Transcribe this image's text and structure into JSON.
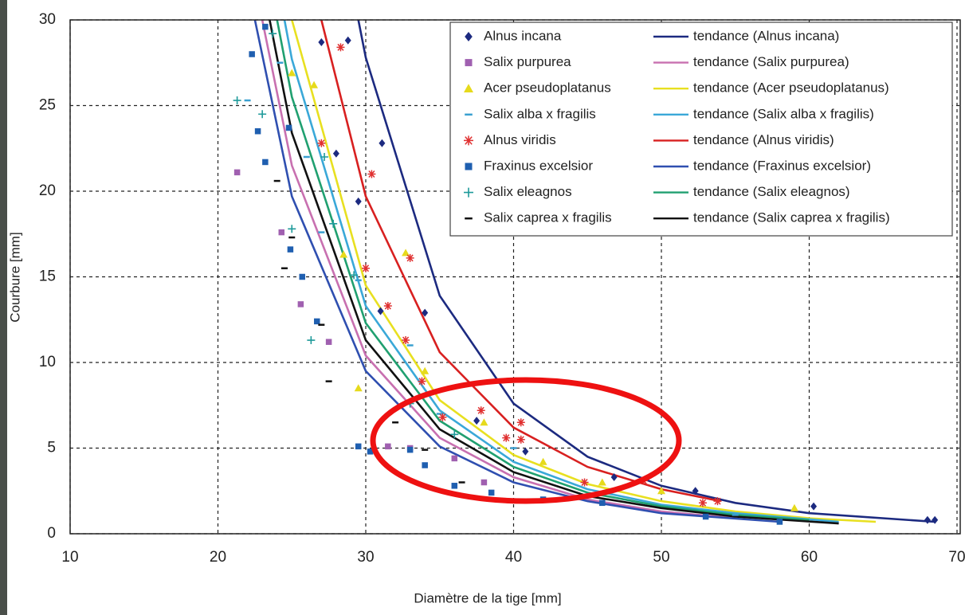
{
  "chart_data": {
    "type": "scatter",
    "x_label": "Diamètre de la tige [mm]",
    "y_label": "Courbure [mm]",
    "xlim": [
      10,
      70
    ],
    "xticks": [
      10,
      20,
      30,
      40,
      50,
      60,
      70
    ],
    "ylim": [
      0,
      30
    ],
    "yticks": [
      0,
      5,
      10,
      15,
      20,
      25,
      30
    ],
    "grid": true,
    "legend": "upper right",
    "series": [
      {
        "name": "Alnus incana",
        "color": "#1c2a80",
        "marker": "diamond",
        "x": [
          28.8,
          27,
          31.1,
          28,
          29.5,
          34,
          31,
          37.5,
          40.8,
          46.8,
          52.3,
          60.3,
          68,
          68.5
        ],
        "values": [
          28.8,
          28.7,
          22.8,
          22.2,
          19.4,
          12.9,
          13,
          6.6,
          4.8,
          3.3,
          2.5,
          1.6,
          0.8,
          0.8
        ]
      },
      {
        "name": "Salix purpurea",
        "color": "#a060b0",
        "marker": "square",
        "x": [
          21.3,
          24.3,
          25.6,
          27.5,
          31.5,
          33,
          36,
          38
        ],
        "values": [
          21.1,
          17.6,
          13.4,
          11.2,
          5.1,
          5.0,
          4.4,
          3.0
        ]
      },
      {
        "name": "Acer pseudoplatanus",
        "color": "#e6da1c",
        "marker": "triangle",
        "x": [
          25,
          26.5,
          28.5,
          32.7,
          29.5,
          34,
          38,
          42,
          46,
          50,
          59
        ],
        "values": [
          26.9,
          26.2,
          16.3,
          16.4,
          8.5,
          9.5,
          6.5,
          4.2,
          3.0,
          2.5,
          1.5
        ]
      },
      {
        "name": "Salix alba x fragilis",
        "color": "#3aa0d0",
        "marker": "dash",
        "x": [
          22,
          24.2,
          26,
          27,
          29.5,
          33,
          35,
          40,
          55
        ],
        "values": [
          25.3,
          27.5,
          22,
          17.6,
          14.8,
          11,
          7,
          5,
          1.1
        ]
      },
      {
        "name": "Alnus viridis",
        "color": "#e03030",
        "marker": "star",
        "x": [
          28.3,
          27,
          30.4,
          30,
          31.5,
          33,
          32.7,
          33.8,
          35.2,
          37.8,
          39.5,
          40.5,
          40.5,
          44.8,
          48.8,
          52.8,
          53.8
        ],
        "values": [
          28.4,
          22.8,
          21,
          15.5,
          13.3,
          16.1,
          11.3,
          8.9,
          6.8,
          7.2,
          5.6,
          6.5,
          5.5,
          3.0,
          3.1,
          1.8,
          1.9
        ]
      },
      {
        "name": "Fraxinus excelsior",
        "color": "#1f5fb0",
        "marker": "square",
        "x": [
          23.2,
          22.3,
          22.7,
          23.2,
          24.8,
          24.9,
          25.7,
          26.7,
          29.5,
          30.3,
          33,
          34,
          36,
          38.5,
          42,
          46,
          53,
          58
        ],
        "values": [
          29.6,
          28,
          23.5,
          21.7,
          23.7,
          16.6,
          15,
          12.4,
          5.1,
          4.8,
          4.9,
          4.0,
          2.8,
          2.4,
          2,
          1.8,
          1.0,
          0.7
        ]
      },
      {
        "name": "Salix eleagnos",
        "color": "#1e9a9a",
        "marker": "plus",
        "x": [
          21.3,
          23,
          23.7,
          25,
          26.3,
          27.2,
          27.8,
          29.2,
          33,
          36
        ],
        "values": [
          25.3,
          24.5,
          29.2,
          17.8,
          11.3,
          22,
          18.1,
          15.1,
          7.6,
          5.8
        ]
      },
      {
        "name": "Salix caprea x fragilis",
        "color": "#111111",
        "marker": "dash",
        "x": [
          24,
          24.5,
          25,
          27,
          27.5,
          32,
          34,
          36.5
        ],
        "values": [
          20.6,
          15.5,
          17.3,
          12.2,
          8.9,
          6.5,
          4.9,
          3.0
        ]
      }
    ],
    "trends": [
      {
        "name": "tendance (Alnus incana)",
        "color": "#1c2a80",
        "x": [
          29.5,
          30,
          35,
          40,
          45,
          50,
          55,
          60,
          68.5
        ],
        "values": [
          30,
          27.8,
          13.9,
          7.6,
          4.5,
          2.8,
          1.8,
          1.2,
          0.7
        ]
      },
      {
        "name": "tendance (Salix purpurea)",
        "color": "#c870b0",
        "x": [
          23,
          25,
          30,
          35,
          40,
          45,
          50,
          55
        ],
        "values": [
          30,
          21.5,
          10.4,
          5.6,
          3.3,
          2.0,
          1.3,
          0.9
        ]
      },
      {
        "name": "tendance (Acer pseudoplatanus)",
        "color": "#e8e020",
        "x": [
          25,
          30,
          35,
          40,
          45,
          50,
          55,
          60,
          64.5
        ],
        "values": [
          30,
          14.5,
          7.8,
          4.6,
          2.9,
          1.9,
          1.3,
          0.9,
          0.7
        ]
      },
      {
        "name": "tendance (Salix alba x fragilis)",
        "color": "#3aa8d8",
        "x": [
          24.5,
          25,
          30,
          35,
          40,
          45,
          50,
          55,
          62
        ],
        "values": [
          30,
          27.7,
          13.3,
          7.2,
          4.2,
          2.6,
          1.7,
          1.2,
          0.7
        ]
      },
      {
        "name": "tendance (Alnus viridis)",
        "color": "#d82020",
        "x": [
          27,
          30,
          35,
          40,
          45,
          50,
          54
        ],
        "values": [
          30,
          19.7,
          10.6,
          6.2,
          3.9,
          2.6,
          1.9
        ]
      },
      {
        "name": "tendance (Fraxinus excelsior)",
        "color": "#2f4fb0",
        "x": [
          22.5,
          25,
          30,
          35,
          40,
          45,
          50,
          58
        ],
        "values": [
          30,
          19.7,
          9.5,
          5.1,
          3.0,
          1.9,
          1.2,
          0.7
        ]
      },
      {
        "name": "tendance (Salix eleagnos)",
        "color": "#20a070",
        "x": [
          24,
          25,
          30,
          35,
          40,
          45,
          50,
          55,
          60
        ],
        "values": [
          30,
          25.5,
          12.3,
          6.6,
          3.9,
          2.4,
          1.6,
          1.1,
          0.8
        ]
      },
      {
        "name": "tendance (Salix caprea x fragilis)",
        "color": "#111111",
        "x": [
          23.5,
          25,
          30,
          35,
          40,
          45,
          50,
          55,
          62
        ],
        "values": [
          30,
          23.4,
          11.3,
          6.1,
          3.6,
          2.2,
          1.5,
          1.0,
          0.6
        ]
      }
    ]
  }
}
